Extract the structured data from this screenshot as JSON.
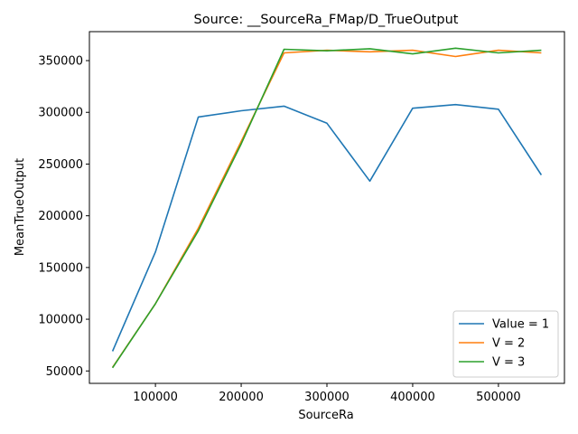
{
  "chart_data": {
    "type": "line",
    "title": "Source: __SourceRa_FMap/D_TrueOutput",
    "xlabel": "SourceRa",
    "ylabel": "MeanTrueOutput",
    "x": [
      50000,
      100000,
      150000,
      200000,
      250000,
      300000,
      350000,
      400000,
      450000,
      500000,
      550000
    ],
    "series": [
      {
        "name": "Value = 1",
        "color": "#1f77b4",
        "values": [
          69000,
          165000,
          295500,
          301500,
          306000,
          289500,
          233500,
          304000,
          307500,
          303000,
          239500
        ]
      },
      {
        "name": "V = 2",
        "color": "#ff7f0e",
        "values": [
          53500,
          115000,
          188000,
          272000,
          357500,
          360000,
          358500,
          360000,
          354000,
          360000,
          357500
        ]
      },
      {
        "name": "V = 3",
        "color": "#2ca02c",
        "values": [
          53000,
          115000,
          185500,
          269500,
          361000,
          359500,
          361500,
          356500,
          362000,
          357500,
          360000
        ]
      }
    ],
    "xlim": [
      23000,
      577000
    ],
    "ylim": [
      38000,
      378000
    ],
    "xticks": [
      100000,
      200000,
      300000,
      400000,
      500000
    ],
    "yticks": [
      50000,
      100000,
      150000,
      200000,
      250000,
      300000,
      350000
    ],
    "grid": false,
    "legend_position": "lower-right"
  }
}
